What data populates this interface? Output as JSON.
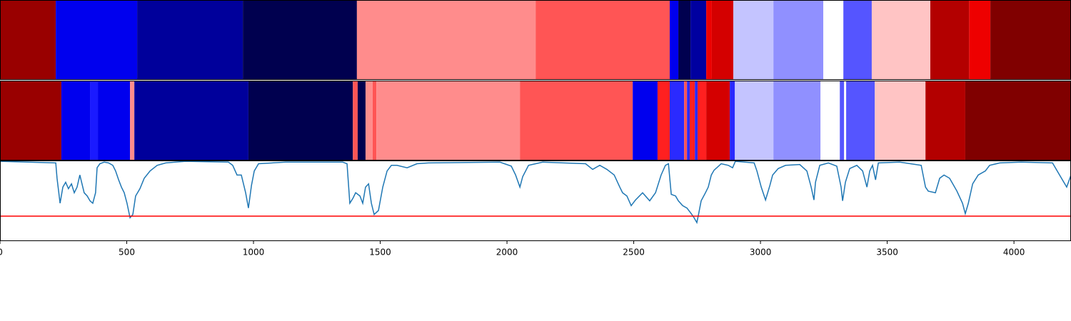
{
  "chart_data": [
    {
      "type": "segments",
      "xlim": [
        0,
        4225
      ],
      "segments": [
        {
          "x0": 0,
          "x1": 220,
          "color": "#990000"
        },
        {
          "x0": 220,
          "x1": 541,
          "color": "#0000ee"
        },
        {
          "x0": 541,
          "x1": 958,
          "color": "#00009b"
        },
        {
          "x0": 958,
          "x1": 1408,
          "color": "#00004f"
        },
        {
          "x0": 1408,
          "x1": 2113,
          "color": "#ff8c8c"
        },
        {
          "x0": 2113,
          "x1": 2642,
          "color": "#ff5555"
        },
        {
          "x0": 2642,
          "x1": 2676,
          "color": "#0000ee"
        },
        {
          "x0": 2676,
          "x1": 2724,
          "color": "#00004f"
        },
        {
          "x0": 2724,
          "x1": 2786,
          "color": "#0000a0"
        },
        {
          "x0": 2786,
          "x1": 2808,
          "color": "#ee0000"
        },
        {
          "x0": 2808,
          "x1": 2893,
          "color": "#d40000"
        },
        {
          "x0": 2893,
          "x1": 3051,
          "color": "#c4c4ff"
        },
        {
          "x0": 3051,
          "x1": 3248,
          "color": "#9090ff"
        },
        {
          "x0": 3248,
          "x1": 3327,
          "color": "#ffffff"
        },
        {
          "x0": 3327,
          "x1": 3439,
          "color": "#5555ff"
        },
        {
          "x0": 3439,
          "x1": 3670,
          "color": "#ffc4c4"
        },
        {
          "x0": 3670,
          "x1": 3823,
          "color": "#b30000"
        },
        {
          "x0": 3823,
          "x1": 3907,
          "color": "#ee0000"
        },
        {
          "x0": 3907,
          "x1": 4225,
          "color": "#800000"
        }
      ]
    },
    {
      "type": "segments",
      "xlim": [
        0,
        4225
      ],
      "segments": [
        {
          "x0": 0,
          "x1": 242,
          "color": "#990000"
        },
        {
          "x0": 242,
          "x1": 355,
          "color": "#0000ee"
        },
        {
          "x0": 355,
          "x1": 386,
          "color": "#1a1aff"
        },
        {
          "x0": 386,
          "x1": 513,
          "color": "#0000ee"
        },
        {
          "x0": 513,
          "x1": 530,
          "color": "#ff8c8c"
        },
        {
          "x0": 530,
          "x1": 980,
          "color": "#00009b"
        },
        {
          "x0": 980,
          "x1": 1392,
          "color": "#00004f"
        },
        {
          "x0": 1392,
          "x1": 1411,
          "color": "#ff5555"
        },
        {
          "x0": 1411,
          "x1": 1442,
          "color": "#00004f"
        },
        {
          "x0": 1442,
          "x1": 1470,
          "color": "#ff8c8c"
        },
        {
          "x0": 1470,
          "x1": 1485,
          "color": "#ff5555"
        },
        {
          "x0": 1485,
          "x1": 2051,
          "color": "#ff8c8c"
        },
        {
          "x0": 2051,
          "x1": 2496,
          "color": "#ff5555"
        },
        {
          "x0": 2496,
          "x1": 2594,
          "color": "#0000ee"
        },
        {
          "x0": 2594,
          "x1": 2642,
          "color": "#ff2020"
        },
        {
          "x0": 2642,
          "x1": 2699,
          "color": "#2a2aff"
        },
        {
          "x0": 2699,
          "x1": 2710,
          "color": "#ff5555"
        },
        {
          "x0": 2710,
          "x1": 2721,
          "color": "#2a2aff"
        },
        {
          "x0": 2721,
          "x1": 2741,
          "color": "#ff2020"
        },
        {
          "x0": 2741,
          "x1": 2752,
          "color": "#2a2aff"
        },
        {
          "x0": 2752,
          "x1": 2786,
          "color": "#ff2020"
        },
        {
          "x0": 2786,
          "x1": 2879,
          "color": "#d40000"
        },
        {
          "x0": 2879,
          "x1": 2899,
          "color": "#2a2aff"
        },
        {
          "x0": 2899,
          "x1": 3051,
          "color": "#c4c4ff"
        },
        {
          "x0": 3051,
          "x1": 3237,
          "color": "#9090ff"
        },
        {
          "x0": 3237,
          "x1": 3313,
          "color": "#ffffff"
        },
        {
          "x0": 3313,
          "x1": 3330,
          "color": "#5555ff"
        },
        {
          "x0": 3330,
          "x1": 3338,
          "color": "#ffffff"
        },
        {
          "x0": 3338,
          "x1": 3451,
          "color": "#5555ff"
        },
        {
          "x0": 3451,
          "x1": 3651,
          "color": "#ffc4c4"
        },
        {
          "x0": 3651,
          "x1": 3808,
          "color": "#b30000"
        },
        {
          "x0": 3808,
          "x1": 4225,
          "color": "#800000"
        }
      ]
    },
    {
      "type": "line",
      "xlim": [
        0,
        4225
      ],
      "ylim": [
        0,
        1
      ],
      "xticks": [
        0,
        500,
        1000,
        1500,
        2000,
        2500,
        3000,
        3500,
        4000
      ],
      "threshold": 0.31,
      "threshold_color": "#ff0000",
      "series": [
        {
          "color": "#1f77b4",
          "x": [
            0,
            220,
            225,
            237,
            248,
            259,
            270,
            282,
            293,
            304,
            315,
            332,
            344,
            355,
            366,
            377,
            383,
            394,
            411,
            428,
            445,
            456,
            468,
            479,
            490,
            501,
            513,
            524,
            535,
            552,
            569,
            592,
            620,
            654,
            732,
            901,
            918,
            935,
            952,
            969,
            980,
            992,
            1003,
            1020,
            1127,
            1352,
            1369,
            1380,
            1392,
            1403,
            1420,
            1431,
            1442,
            1454,
            1465,
            1476,
            1493,
            1510,
            1527,
            1544,
            1566,
            1606,
            1645,
            1690,
            1972,
            2017,
            2034,
            2051,
            2062,
            2085,
            2141,
            2310,
            2338,
            2366,
            2394,
            2423,
            2445,
            2456,
            2473,
            2490,
            2507,
            2535,
            2563,
            2586,
            2608,
            2625,
            2637,
            2648,
            2665,
            2676,
            2693,
            2710,
            2727,
            2738,
            2749,
            2755,
            2766,
            2783,
            2794,
            2806,
            2817,
            2845,
            2873,
            2890,
            2901,
            2975,
            2986,
            3003,
            3020,
            3037,
            3048,
            3070,
            3099,
            3155,
            3183,
            3200,
            3211,
            3217,
            3234,
            3268,
            3301,
            3318,
            3324,
            3335,
            3352,
            3380,
            3403,
            3420,
            3431,
            3442,
            3454,
            3465,
            3549,
            3634,
            3651,
            3662,
            3690,
            3707,
            3724,
            3746,
            3775,
            3797,
            3808,
            3820,
            3837,
            3859,
            3887,
            3904,
            3944,
            4028,
            4152,
            4180,
            4208,
            4225
          ],
          "values": [
            0.99,
            0.97,
            0.78,
            0.47,
            0.67,
            0.73,
            0.65,
            0.71,
            0.6,
            0.67,
            0.82,
            0.6,
            0.56,
            0.5,
            0.47,
            0.6,
            0.91,
            0.96,
            0.98,
            0.97,
            0.94,
            0.87,
            0.76,
            0.67,
            0.6,
            0.47,
            0.29,
            0.33,
            0.56,
            0.65,
            0.78,
            0.87,
            0.94,
            0.97,
            0.99,
            0.98,
            0.94,
            0.82,
            0.82,
            0.6,
            0.41,
            0.69,
            0.87,
            0.96,
            0.98,
            0.98,
            0.96,
            0.47,
            0.53,
            0.6,
            0.56,
            0.47,
            0.67,
            0.71,
            0.47,
            0.33,
            0.38,
            0.67,
            0.87,
            0.94,
            0.94,
            0.91,
            0.96,
            0.97,
            0.98,
            0.93,
            0.82,
            0.67,
            0.8,
            0.94,
            0.98,
            0.96,
            0.89,
            0.94,
            0.89,
            0.82,
            0.67,
            0.6,
            0.56,
            0.44,
            0.51,
            0.6,
            0.5,
            0.6,
            0.82,
            0.94,
            0.96,
            0.58,
            0.56,
            0.5,
            0.44,
            0.41,
            0.34,
            0.29,
            0.23,
            0.32,
            0.5,
            0.6,
            0.67,
            0.82,
            0.88,
            0.96,
            0.94,
            0.91,
            0.99,
            0.97,
            0.87,
            0.67,
            0.51,
            0.69,
            0.82,
            0.9,
            0.94,
            0.95,
            0.87,
            0.67,
            0.51,
            0.73,
            0.94,
            0.97,
            0.93,
            0.67,
            0.5,
            0.73,
            0.9,
            0.94,
            0.87,
            0.67,
            0.87,
            0.94,
            0.76,
            0.97,
            0.98,
            0.94,
            0.67,
            0.62,
            0.6,
            0.78,
            0.82,
            0.78,
            0.62,
            0.47,
            0.34,
            0.47,
            0.71,
            0.82,
            0.87,
            0.94,
            0.97,
            0.98,
            0.97,
            0.82,
            0.67,
            0.82
          ]
        }
      ]
    }
  ]
}
